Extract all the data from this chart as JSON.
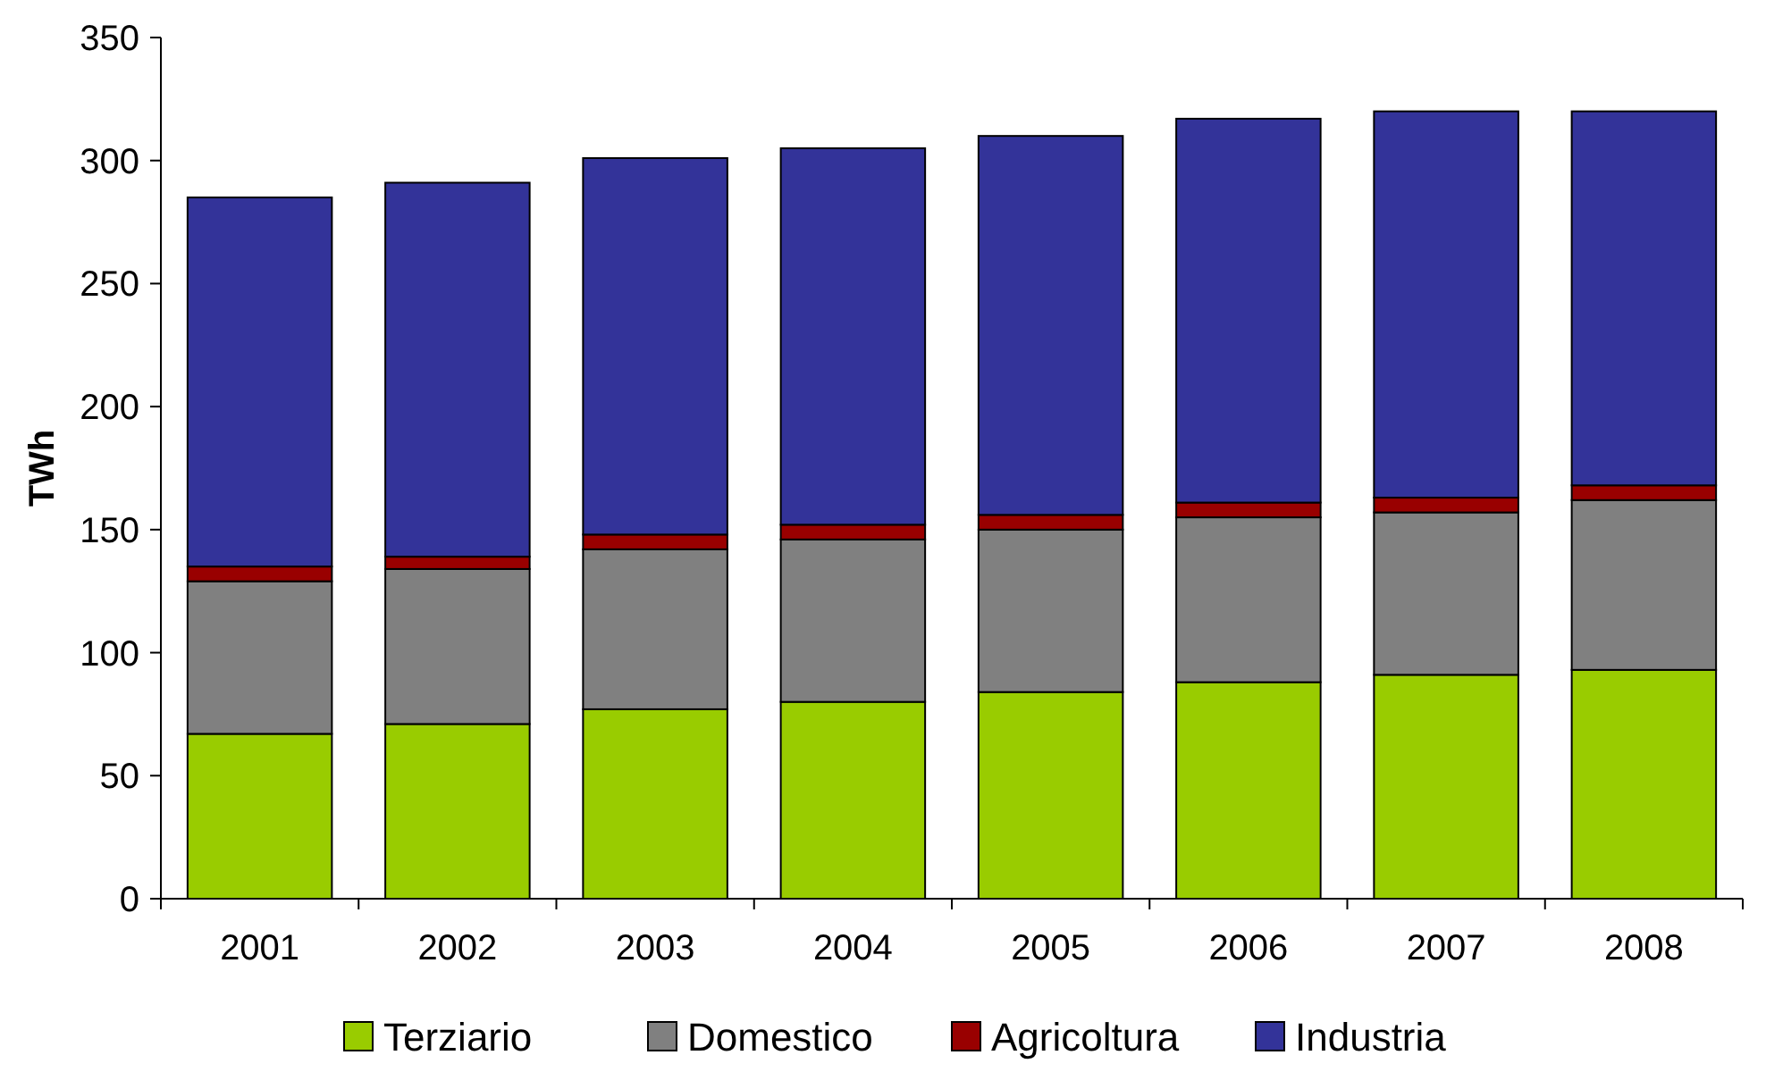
{
  "chart_data": {
    "type": "bar",
    "stacked": true,
    "ylabel": "TWh",
    "categories": [
      "2001",
      "2002",
      "2003",
      "2004",
      "2005",
      "2006",
      "2007",
      "2008"
    ],
    "series": [
      {
        "name": "Terziario",
        "color": "#99cc00",
        "values": [
          67,
          71,
          77,
          80,
          84,
          88,
          91,
          93
        ]
      },
      {
        "name": "Domestico",
        "color": "#808080",
        "values": [
          62,
          63,
          65,
          66,
          66,
          67,
          66,
          69
        ]
      },
      {
        "name": "Agricoltura",
        "color": "#990000",
        "values": [
          6,
          5,
          6,
          6,
          6,
          6,
          6,
          6
        ]
      },
      {
        "name": "Industria",
        "color": "#333399",
        "values": [
          150,
          152,
          153,
          153,
          154,
          156,
          157,
          152
        ]
      }
    ],
    "ylim": [
      0,
      350
    ],
    "yticks": [
      0,
      50,
      100,
      150,
      200,
      250,
      300,
      350
    ],
    "grid": false,
    "legend": "bottom"
  }
}
